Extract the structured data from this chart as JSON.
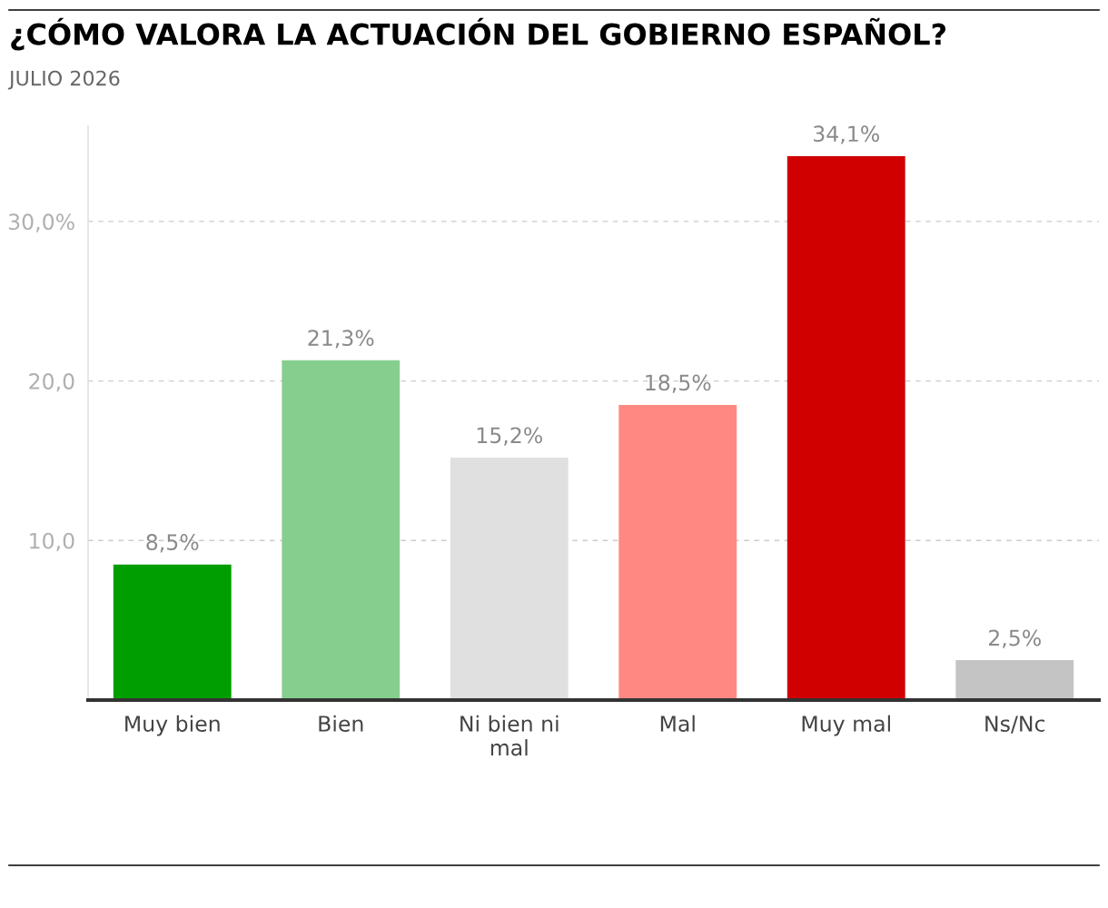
{
  "chart_data": {
    "type": "bar",
    "title": "¿CÓMO VALORA LA ACTUACIÓN DEL GOBIERNO ESPAÑOL?",
    "subtitle": "JULIO 2026",
    "categories": [
      "Muy bien",
      "Bien",
      "Ni bien ni mal",
      "Mal",
      "Muy mal",
      "Ns/Nc"
    ],
    "values": [
      8.5,
      21.3,
      15.2,
      18.5,
      34.1,
      2.5
    ],
    "colors": [
      "#009e00",
      "#86ce8e",
      "#e0e0e0",
      "#ff8883",
      "#d10000",
      "#c4c4c4"
    ],
    "value_labels": [
      "8,5%",
      "21,3%",
      "15,2%",
      "18,5%",
      "34,1%",
      "2,5%"
    ],
    "ylim": [
      0,
      36
    ],
    "yticks": [
      {
        "value": 10,
        "label": "10,0"
      },
      {
        "value": 20,
        "label": "20,0"
      },
      {
        "value": 30,
        "label": "30,0%"
      }
    ],
    "grid": "y",
    "legend": false
  }
}
